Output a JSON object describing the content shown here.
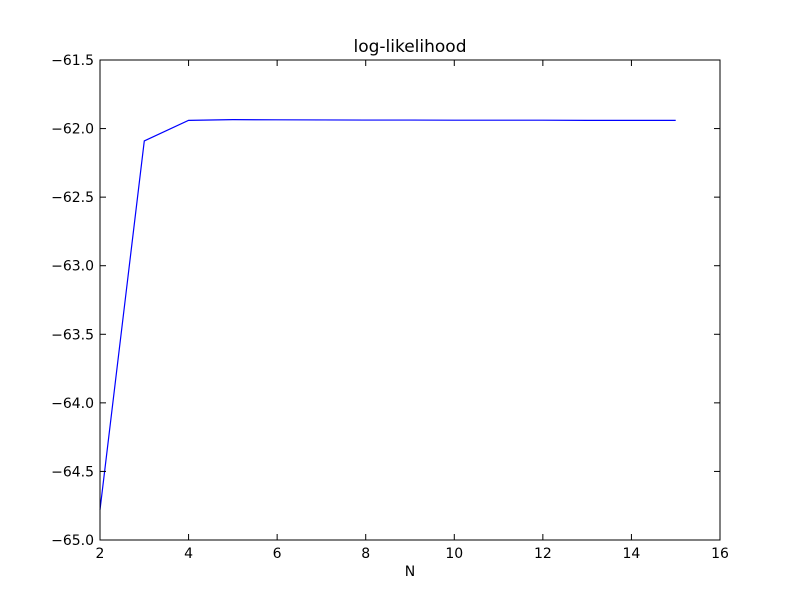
{
  "chart_data": {
    "type": "line",
    "title": "log-likelihood",
    "xlabel": "N",
    "ylabel": "",
    "xlim": [
      2,
      16
    ],
    "ylim": [
      -65.0,
      -61.5
    ],
    "x_ticks": [
      2,
      4,
      6,
      8,
      10,
      12,
      14,
      16
    ],
    "x_tick_labels": [
      "2",
      "4",
      "6",
      "8",
      "10",
      "12",
      "14",
      "16"
    ],
    "y_ticks": [
      -61.5,
      -62.0,
      -62.5,
      -63.0,
      -63.5,
      -64.0,
      -64.5,
      -65.0
    ],
    "y_tick_labels": [
      "−61.5",
      "−62.0",
      "−62.5",
      "−63.0",
      "−63.5",
      "−64.0",
      "−64.5",
      "−65.0"
    ],
    "grid": false,
    "series": [
      {
        "color": "#0000ff",
        "x": [
          2,
          3,
          4,
          5,
          6,
          7,
          8,
          9,
          10,
          11,
          12,
          13,
          14,
          15
        ],
        "y": [
          -64.78,
          -62.09,
          -61.94,
          -61.935,
          -61.936,
          -61.937,
          -61.938,
          -61.938,
          -61.939,
          -61.939,
          -61.939,
          -61.94,
          -61.94,
          -61.94
        ]
      }
    ]
  }
}
